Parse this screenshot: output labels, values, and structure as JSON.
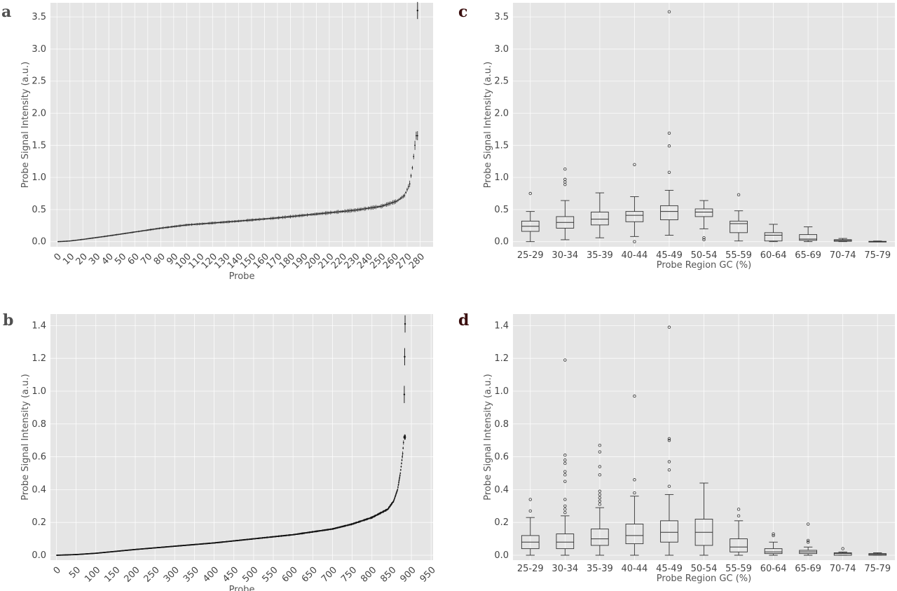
{
  "panels": [
    {
      "letter": "a",
      "color": "#505050"
    },
    {
      "letter": "b",
      "color": "#505050"
    },
    {
      "letter": "c",
      "color": "#3a0f0f"
    },
    {
      "letter": "d",
      "color": "#3a0f0f"
    }
  ],
  "chart_data": [
    {
      "id": "a",
      "type": "scatter",
      "description_series": "per-probe mean with error bars, sorted",
      "xlabel": "Probe",
      "ylabel": "Probe Signal Intensity (a.u.)",
      "xlim": [
        -5,
        290
      ],
      "ylim": [
        -0.08,
        3.72
      ],
      "xticks": [
        0,
        10,
        20,
        30,
        40,
        50,
        60,
        70,
        80,
        90,
        100,
        110,
        120,
        130,
        140,
        150,
        160,
        170,
        180,
        190,
        200,
        210,
        220,
        230,
        240,
        250,
        260,
        270,
        280
      ],
      "yticks": [
        0.0,
        0.5,
        1.0,
        1.5,
        2.0,
        2.5,
        3.0,
        3.5
      ],
      "n_points": 278,
      "curve_anchors": [
        [
          1,
          0.0
        ],
        [
          10,
          0.01
        ],
        [
          20,
          0.035
        ],
        [
          40,
          0.09
        ],
        [
          60,
          0.15
        ],
        [
          80,
          0.21
        ],
        [
          100,
          0.26
        ],
        [
          140,
          0.32
        ],
        [
          170,
          0.37
        ],
        [
          200,
          0.43
        ],
        [
          230,
          0.49
        ],
        [
          250,
          0.55
        ],
        [
          262,
          0.63
        ],
        [
          268,
          0.72
        ],
        [
          272,
          0.9
        ],
        [
          274,
          1.15
        ],
        [
          276,
          1.5
        ],
        [
          277,
          1.65
        ]
      ],
      "outliers": [
        [
          278,
          3.6
        ]
      ]
    },
    {
      "id": "b",
      "type": "scatter",
      "description_series": "per-probe mean with error bars, sorted",
      "xlabel": "Probe",
      "ylabel": "Probe Signal Intensity (a.u.)",
      "xlim": [
        -15,
        955
      ],
      "ylim": [
        -0.03,
        1.47
      ],
      "xticks": [
        0,
        50,
        100,
        150,
        200,
        250,
        300,
        350,
        400,
        450,
        500,
        550,
        600,
        650,
        700,
        750,
        800,
        850,
        900,
        950
      ],
      "yticks": [
        0.0,
        0.2,
        0.4,
        0.6,
        0.8,
        1.0,
        1.2,
        1.4
      ],
      "n_points": 885,
      "curve_anchors": [
        [
          1,
          0.0
        ],
        [
          50,
          0.004
        ],
        [
          100,
          0.012
        ],
        [
          200,
          0.035
        ],
        [
          300,
          0.055
        ],
        [
          400,
          0.075
        ],
        [
          500,
          0.1
        ],
        [
          600,
          0.125
        ],
        [
          700,
          0.16
        ],
        [
          750,
          0.19
        ],
        [
          800,
          0.23
        ],
        [
          840,
          0.28
        ],
        [
          855,
          0.33
        ],
        [
          865,
          0.4
        ],
        [
          872,
          0.5
        ],
        [
          878,
          0.62
        ],
        [
          881,
          0.72
        ]
      ],
      "outliers": [
        [
          882,
          0.98
        ],
        [
          883,
          1.21
        ],
        [
          884,
          1.41
        ]
      ]
    },
    {
      "id": "c",
      "type": "boxplot",
      "xlabel": "Probe Region GC (%)",
      "ylabel": "Probe Signal Intensity (a.u.)",
      "ylim": [
        -0.08,
        3.72
      ],
      "yticks": [
        0.0,
        0.5,
        1.0,
        1.5,
        2.0,
        2.5,
        3.0,
        3.5
      ],
      "categories": [
        "25-29",
        "30-34",
        "35-39",
        "40-44",
        "45-49",
        "50-54",
        "55-59",
        "60-64",
        "65-69",
        "70-74",
        "75-79"
      ],
      "boxes": [
        {
          "wlo": 0.0,
          "q1": 0.16,
          "med": 0.24,
          "q3": 0.32,
          "whi": 0.47,
          "outliers": [
            0.75
          ]
        },
        {
          "wlo": 0.03,
          "q1": 0.21,
          "med": 0.3,
          "q3": 0.39,
          "whi": 0.64,
          "outliers": [
            0.89,
            0.93,
            0.97,
            1.13
          ]
        },
        {
          "wlo": 0.06,
          "q1": 0.26,
          "med": 0.35,
          "q3": 0.46,
          "whi": 0.76,
          "outliers": []
        },
        {
          "wlo": 0.08,
          "q1": 0.31,
          "med": 0.41,
          "q3": 0.47,
          "whi": 0.7,
          "outliers": [
            0.0,
            1.2
          ]
        },
        {
          "wlo": 0.1,
          "q1": 0.34,
          "med": 0.47,
          "q3": 0.56,
          "whi": 0.8,
          "outliers": [
            1.08,
            1.49,
            1.69,
            3.58
          ]
        },
        {
          "wlo": 0.2,
          "q1": 0.39,
          "med": 0.46,
          "q3": 0.51,
          "whi": 0.64,
          "outliers": [
            0.03,
            0.06
          ]
        },
        {
          "wlo": 0.01,
          "q1": 0.14,
          "med": 0.28,
          "q3": 0.32,
          "whi": 0.48,
          "outliers": [
            0.73
          ]
        },
        {
          "wlo": 0.0,
          "q1": 0.01,
          "med": 0.1,
          "q3": 0.14,
          "whi": 0.27,
          "outliers": []
        },
        {
          "wlo": 0.0,
          "q1": 0.02,
          "med": 0.04,
          "q3": 0.11,
          "whi": 0.23,
          "outliers": []
        },
        {
          "wlo": 0.0,
          "q1": 0.005,
          "med": 0.02,
          "q3": 0.03,
          "whi": 0.05,
          "outliers": []
        },
        {
          "wlo": 0.0,
          "q1": 0.0,
          "med": 0.0,
          "q3": 0.005,
          "whi": 0.01,
          "outliers": []
        }
      ]
    },
    {
      "id": "d",
      "type": "boxplot",
      "xlabel": "Probe Region GC (%)",
      "ylabel": "Probe Signal Intensity (a.u.)",
      "ylim": [
        -0.03,
        1.47
      ],
      "yticks": [
        0.0,
        0.2,
        0.4,
        0.6,
        0.8,
        1.0,
        1.2,
        1.4
      ],
      "categories": [
        "25-29",
        "30-34",
        "35-39",
        "40-44",
        "45-49",
        "50-54",
        "55-59",
        "60-64",
        "65-69",
        "70-74",
        "75-79"
      ],
      "boxes": [
        {
          "wlo": 0.0,
          "q1": 0.04,
          "med": 0.08,
          "q3": 0.12,
          "whi": 0.23,
          "outliers": [
            0.27,
            0.34
          ]
        },
        {
          "wlo": 0.0,
          "q1": 0.04,
          "med": 0.08,
          "q3": 0.13,
          "whi": 0.24,
          "outliers": [
            0.26,
            0.28,
            0.3,
            0.34,
            0.45,
            0.49,
            0.51,
            0.56,
            0.58,
            0.61,
            1.19
          ]
        },
        {
          "wlo": 0.0,
          "q1": 0.06,
          "med": 0.1,
          "q3": 0.16,
          "whi": 0.29,
          "outliers": [
            0.31,
            0.33,
            0.35,
            0.37,
            0.39,
            0.49,
            0.54,
            0.63,
            0.67
          ]
        },
        {
          "wlo": 0.0,
          "q1": 0.07,
          "med": 0.12,
          "q3": 0.19,
          "whi": 0.36,
          "outliers": [
            0.38,
            0.46,
            0.97
          ]
        },
        {
          "wlo": 0.0,
          "q1": 0.08,
          "med": 0.14,
          "q3": 0.21,
          "whi": 0.37,
          "outliers": [
            0.42,
            0.52,
            0.57,
            0.7,
            0.71,
            1.39
          ]
        },
        {
          "wlo": 0.0,
          "q1": 0.06,
          "med": 0.14,
          "q3": 0.22,
          "whi": 0.44,
          "outliers": []
        },
        {
          "wlo": 0.0,
          "q1": 0.02,
          "med": 0.05,
          "q3": 0.1,
          "whi": 0.21,
          "outliers": [
            0.24,
            0.28
          ]
        },
        {
          "wlo": 0.0,
          "q1": 0.01,
          "med": 0.02,
          "q3": 0.04,
          "whi": 0.08,
          "outliers": [
            0.12,
            0.13
          ]
        },
        {
          "wlo": 0.0,
          "q1": 0.01,
          "med": 0.02,
          "q3": 0.03,
          "whi": 0.05,
          "outliers": [
            0.08,
            0.09,
            0.19
          ]
        },
        {
          "wlo": 0.0,
          "q1": 0.0,
          "med": 0.01,
          "q3": 0.015,
          "whi": 0.02,
          "outliers": [
            0.04
          ]
        },
        {
          "wlo": 0.0,
          "q1": 0.0,
          "med": 0.005,
          "q3": 0.01,
          "whi": 0.015,
          "outliers": []
        }
      ]
    }
  ]
}
